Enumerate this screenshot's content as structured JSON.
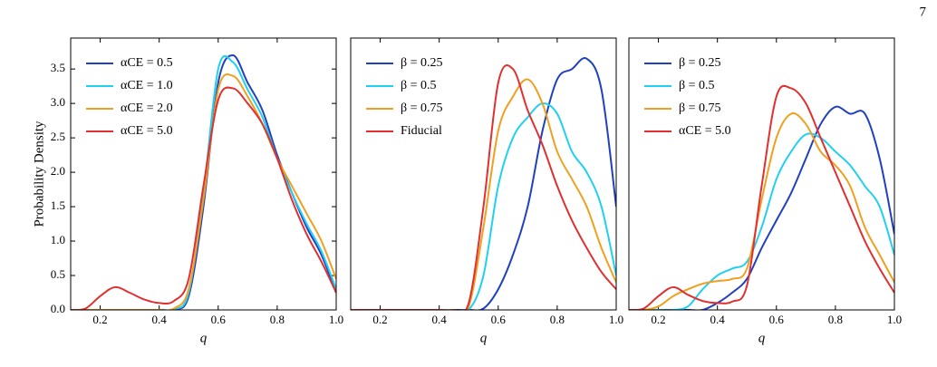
{
  "page_number": "7",
  "chart_data": [
    {
      "type": "line",
      "y_label": "Probability Density",
      "x_label": "q",
      "xlim": [
        0.1,
        1.0
      ],
      "ylim": [
        0,
        3.95
      ],
      "xticks": [
        0.2,
        0.4,
        0.6,
        0.8,
        {
          "value": 1.0,
          "label": "1.0"
        }
      ],
      "yticks": [
        {
          "value": 0,
          "label": "0.0"
        },
        0.5,
        {
          "value": 1,
          "label": "1.0"
        },
        1.5,
        {
          "value": 2,
          "label": "2.0"
        },
        2.5,
        {
          "value": 3,
          "label": "3.0"
        },
        3.5
      ],
      "x": [
        0.1,
        0.15,
        0.2,
        0.25,
        0.3,
        0.35,
        0.4,
        0.45,
        0.5,
        0.55,
        0.6,
        0.65,
        0.7,
        0.75,
        0.8,
        0.85,
        0.9,
        0.95,
        1.0
      ],
      "legend": "upper left",
      "series": [
        {
          "name": "αCE = 0.5",
          "color": "#2040c0",
          "values": [
            0,
            0,
            0,
            0,
            0,
            0,
            0,
            0.01,
            0.2,
            1.5,
            3.3,
            3.7,
            3.3,
            2.9,
            2.25,
            1.7,
            1.2,
            0.8,
            0.25
          ]
        },
        {
          "name": "αCE = 1.0",
          "color": "#20d0f0",
          "values": [
            0,
            0,
            0,
            0,
            0,
            0,
            0,
            0.01,
            0.25,
            1.7,
            3.5,
            3.6,
            3.2,
            2.8,
            2.2,
            1.7,
            1.25,
            0.85,
            0.3
          ]
        },
        {
          "name": "αCE = 2.0",
          "color": "#f0a020",
          "values": [
            0,
            0,
            0,
            0,
            0,
            0,
            0,
            0.02,
            0.3,
            1.6,
            3.2,
            3.4,
            3.1,
            2.7,
            2.2,
            1.8,
            1.4,
            1.0,
            0.45
          ]
        },
        {
          "name": "αCE = 5.0",
          "color": "#e03030",
          "values": [
            0,
            0.02,
            0.2,
            0.33,
            0.25,
            0.15,
            0.1,
            0.13,
            0.45,
            1.8,
            3.05,
            3.22,
            3.0,
            2.7,
            2.2,
            1.6,
            1.1,
            0.7,
            0.25
          ]
        }
      ]
    },
    {
      "type": "line",
      "x_label": "q",
      "xlim": [
        0.1,
        1.0
      ],
      "ylim": [
        0,
        3.95
      ],
      "xticks": [
        0.2,
        0.4,
        0.6,
        0.8,
        {
          "value": 1.0,
          "label": "1.0"
        }
      ],
      "x": [
        0.1,
        0.15,
        0.2,
        0.25,
        0.3,
        0.35,
        0.4,
        0.45,
        0.5,
        0.55,
        0.6,
        0.65,
        0.7,
        0.75,
        0.8,
        0.85,
        0.9,
        0.95,
        1.0
      ],
      "legend": "upper left",
      "series": [
        {
          "name": "β = 0.25",
          "color": "#2040c0",
          "values": [
            0,
            0,
            0,
            0,
            0,
            0,
            0,
            0,
            0,
            0.02,
            0.3,
            0.8,
            1.5,
            2.6,
            3.35,
            3.5,
            3.65,
            3.2,
            1.5
          ]
        },
        {
          "name": "β = 0.5",
          "color": "#20d0f0",
          "values": [
            0,
            0,
            0,
            0,
            0,
            0,
            0,
            0,
            0,
            0.5,
            1.8,
            2.5,
            2.8,
            3.0,
            2.85,
            2.3,
            2.0,
            1.5,
            0.5
          ]
        },
        {
          "name": "β = 0.75",
          "color": "#f0a020",
          "values": [
            0,
            0,
            0,
            0,
            0,
            0,
            0,
            0,
            0.05,
            1.2,
            2.6,
            3.1,
            3.35,
            3.0,
            2.3,
            1.9,
            1.5,
            0.9,
            0.4
          ]
        },
        {
          "name": "Fiducial",
          "color": "#e03030",
          "values": [
            0,
            0,
            0,
            0,
            0,
            0,
            0,
            0,
            0.1,
            1.5,
            3.3,
            3.5,
            2.9,
            2.4,
            1.8,
            1.3,
            0.9,
            0.55,
            0.3
          ]
        }
      ]
    },
    {
      "type": "line",
      "x_label": "q",
      "xlim": [
        0.1,
        1.0
      ],
      "ylim": [
        0,
        3.95
      ],
      "xticks": [
        0.2,
        0.4,
        0.6,
        0.8,
        {
          "value": 1.0,
          "label": "1.0"
        }
      ],
      "x": [
        0.1,
        0.15,
        0.2,
        0.25,
        0.3,
        0.35,
        0.4,
        0.45,
        0.5,
        0.55,
        0.6,
        0.65,
        0.7,
        0.75,
        0.8,
        0.85,
        0.9,
        0.95,
        1.0
      ],
      "legend": "upper left",
      "series": [
        {
          "name": "β = 0.25",
          "color": "#2040c0",
          "values": [
            0,
            0,
            0,
            0,
            0,
            0,
            0.1,
            0.25,
            0.45,
            0.9,
            1.3,
            1.7,
            2.2,
            2.7,
            2.95,
            2.85,
            2.85,
            2.2,
            1.1
          ]
        },
        {
          "name": "β = 0.5",
          "color": "#20d0f0",
          "values": [
            0,
            0,
            0,
            0,
            0.05,
            0.3,
            0.5,
            0.6,
            0.7,
            1.2,
            1.9,
            2.3,
            2.55,
            2.5,
            2.3,
            2.1,
            1.8,
            1.5,
            0.8
          ]
        },
        {
          "name": "β = 0.75",
          "color": "#f0a020",
          "values": [
            0,
            0,
            0.05,
            0.2,
            0.3,
            0.38,
            0.42,
            0.45,
            0.6,
            1.6,
            2.5,
            2.85,
            2.7,
            2.3,
            2.1,
            1.8,
            1.2,
            0.8,
            0.4
          ]
        },
        {
          "name": "αCE = 5.0",
          "color": "#e03030",
          "values": [
            0,
            0.02,
            0.2,
            0.33,
            0.22,
            0.13,
            0.1,
            0.12,
            0.35,
            1.8,
            3.1,
            3.22,
            3.0,
            2.5,
            2.0,
            1.5,
            1.0,
            0.6,
            0.25
          ]
        }
      ]
    }
  ]
}
